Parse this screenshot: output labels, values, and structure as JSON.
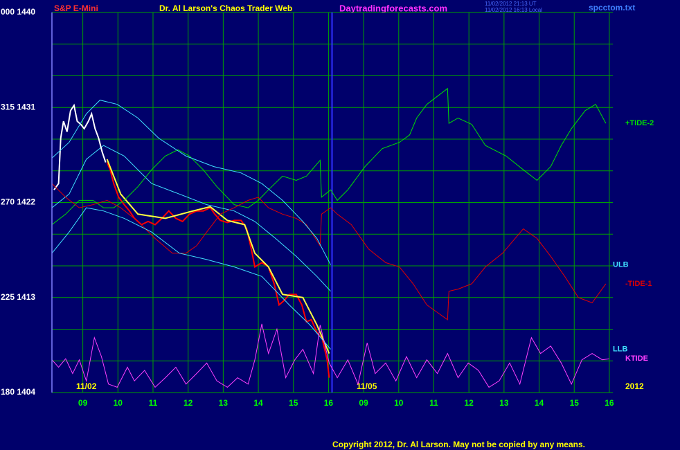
{
  "chart_data": {
    "type": "line",
    "symbol": "S&P E-Mini",
    "title": "Dr. Al Larson's Chaos Trader Web",
    "subtitle": "Daytradingforecasts.com",
    "timestamps": [
      "11/02/2012 21:13 UT",
      "11/02/2012 16:13 Local"
    ],
    "file": "spcctom.txt",
    "copyright": "Copyright 2012, Dr. Al Larson. May not be copied by any means.",
    "date_labels": [
      "11/02",
      "11/05",
      "2012"
    ],
    "xlim": [
      0.12,
      16.1
    ],
    "ylim": [
      1404,
      1440
    ],
    "xticks": [
      {
        "value": 1,
        "label": "09"
      },
      {
        "value": 2,
        "label": "10"
      },
      {
        "value": 3,
        "label": "11"
      },
      {
        "value": 4,
        "label": "12"
      },
      {
        "value": 5,
        "label": "13"
      },
      {
        "value": 6,
        "label": "14"
      },
      {
        "value": 7,
        "label": "15"
      },
      {
        "value": 8,
        "label": "16"
      },
      {
        "value": 9,
        "label": "09"
      },
      {
        "value": 10,
        "label": "10"
      },
      {
        "value": 11,
        "label": "11"
      },
      {
        "value": 12,
        "label": "12"
      },
      {
        "value": 13,
        "label": "13"
      },
      {
        "value": 14,
        "label": "14"
      },
      {
        "value": 15,
        "label": "15"
      },
      {
        "value": 16,
        "label": "16"
      }
    ],
    "yticks": [
      {
        "value": 1440,
        "label": "000 1440"
      },
      {
        "value": 1431,
        "label": "315 1431"
      },
      {
        "value": 1422,
        "label": "270 1422"
      },
      {
        "value": 1413,
        "label": "225 1413"
      },
      {
        "value": 1404,
        "label": "180 1404"
      }
    ],
    "y_gridlines": [
      1440,
      1437,
      1434,
      1431,
      1428,
      1425,
      1422,
      1419,
      1416,
      1413,
      1410,
      1407,
      1404
    ],
    "session_break": 8.1,
    "grid": true,
    "series": [
      {
        "name": "+TIDE-2",
        "color": "#00e000",
        "x": [
          0.12,
          0.51,
          0.9,
          1.29,
          1.59,
          1.88,
          2.18,
          2.57,
          2.96,
          3.35,
          3.71,
          4.04,
          4.43,
          4.82,
          5.31,
          5.71,
          6.0,
          6.29,
          6.69,
          7.08,
          7.37,
          7.76,
          7.8,
          8.06,
          8.25,
          8.55,
          9.04,
          9.53,
          10.02,
          10.31,
          10.51,
          10.8,
          11.39,
          11.43,
          11.69,
          12.08,
          12.47,
          13.06,
          13.55,
          13.94,
          14.33,
          14.63,
          14.92,
          15.31,
          15.61,
          15.9
        ],
        "values": [
          1419.9,
          1420.9,
          1422.2,
          1422.2,
          1421.5,
          1421.5,
          1422.2,
          1423.5,
          1425.1,
          1426.4,
          1427.0,
          1426.4,
          1425.1,
          1423.5,
          1421.8,
          1421.5,
          1422.2,
          1423.2,
          1424.5,
          1424.1,
          1424.5,
          1426.0,
          1422.5,
          1423.2,
          1422.2,
          1423.2,
          1425.4,
          1427.1,
          1427.7,
          1428.4,
          1430.0,
          1431.3,
          1432.8,
          1429.5,
          1430.0,
          1429.4,
          1427.4,
          1426.4,
          1425.1,
          1424.1,
          1425.4,
          1427.4,
          1429.0,
          1430.7,
          1431.3,
          1429.5
        ]
      },
      {
        "name": "-TIDE-1",
        "color": "#e00000",
        "x": [
          0.12,
          0.51,
          0.9,
          1.29,
          1.69,
          2.08,
          2.57,
          3.06,
          3.55,
          3.94,
          4.24,
          4.53,
          4.92,
          5.31,
          5.71,
          6.0,
          6.29,
          6.69,
          7.08,
          7.37,
          7.76,
          7.8,
          8.06,
          8.25,
          8.65,
          9.14,
          9.63,
          10.02,
          10.41,
          10.8,
          11.39,
          11.43,
          11.69,
          12.08,
          12.47,
          12.96,
          13.55,
          13.94,
          14.33,
          14.73,
          15.12,
          15.51,
          15.9
        ],
        "values": [
          1423.8,
          1422.5,
          1421.5,
          1421.8,
          1422.2,
          1421.5,
          1420.2,
          1418.6,
          1417.2,
          1417.2,
          1417.9,
          1419.2,
          1420.9,
          1421.5,
          1422.2,
          1422.5,
          1421.5,
          1420.9,
          1420.5,
          1419.9,
          1417.9,
          1420.9,
          1421.5,
          1420.9,
          1419.9,
          1417.6,
          1416.3,
          1415.9,
          1414.3,
          1412.3,
          1410.9,
          1413.6,
          1413.8,
          1414.3,
          1415.9,
          1417.2,
          1419.5,
          1418.6,
          1416.9,
          1415.0,
          1413.0,
          1412.5,
          1414.3
        ]
      },
      {
        "name": "ULB",
        "color": "#40e0ff",
        "x": [
          0.12,
          0.61,
          1.1,
          1.49,
          1.98,
          2.57,
          3.16,
          3.94,
          4.73,
          5.51,
          6.1,
          6.69,
          7.27,
          7.67,
          8.06
        ],
        "values": [
          1426.2,
          1427.7,
          1430.4,
          1431.7,
          1431.3,
          1430.0,
          1428.1,
          1426.4,
          1425.4,
          1424.8,
          1423.8,
          1422.2,
          1420.2,
          1418.6,
          1416.1
        ]
      },
      {
        "name": "LLB",
        "color": "#40e0ff",
        "x": [
          0.12,
          0.61,
          1.1,
          1.59,
          2.18,
          2.96,
          3.75,
          4.53,
          5.31,
          6.1,
          6.88,
          7.47,
          8.06
        ],
        "values": [
          1417.2,
          1419.2,
          1421.5,
          1421.2,
          1420.5,
          1419.2,
          1417.2,
          1416.6,
          1415.9,
          1415.0,
          1412.3,
          1410.4,
          1408.1
        ]
      },
      {
        "name": "KTIDE",
        "color": "#ff40ff",
        "x": [
          0.12,
          0.31,
          0.51,
          0.71,
          0.9,
          1.1,
          1.33,
          1.53,
          1.73,
          1.98,
          2.27,
          2.47,
          2.76,
          3.06,
          3.35,
          3.65,
          3.94,
          4.24,
          4.53,
          4.82,
          5.12,
          5.41,
          5.71,
          5.9,
          6.1,
          6.29,
          6.53,
          6.78,
          7.04,
          7.27,
          7.57,
          7.76,
          8.02,
          8.25,
          8.55,
          8.84,
          9.1,
          9.33,
          9.63,
          9.92,
          10.22,
          10.51,
          10.8,
          11.1,
          11.39,
          11.69,
          11.98,
          12.27,
          12.57,
          12.86,
          13.16,
          13.45,
          13.78,
          14.04,
          14.33,
          14.63,
          14.92,
          15.22,
          15.51,
          15.8,
          16.0
        ],
        "values": [
          1407.1,
          1406.4,
          1407.2,
          1405.8,
          1407.1,
          1405.1,
          1409.2,
          1407.4,
          1404.8,
          1404.5,
          1406.4,
          1405.1,
          1406.1,
          1404.5,
          1405.4,
          1406.4,
          1404.8,
          1405.8,
          1406.8,
          1405.1,
          1404.5,
          1405.4,
          1404.8,
          1407.1,
          1410.5,
          1407.7,
          1410.0,
          1405.4,
          1407.1,
          1408.1,
          1405.8,
          1410.4,
          1406.8,
          1405.4,
          1407.1,
          1404.8,
          1408.7,
          1405.8,
          1406.8,
          1405.1,
          1407.4,
          1405.4,
          1407.1,
          1405.8,
          1407.7,
          1405.4,
          1406.8,
          1406.1,
          1404.5,
          1405.1,
          1406.8,
          1404.8,
          1409.2,
          1407.7,
          1408.4,
          1406.8,
          1404.8,
          1407.1,
          1407.7,
          1407.1,
          1407.2
        ]
      }
    ],
    "lines": [
      {
        "color": "#40e0ff",
        "x": [
          0.12,
          0.61,
          1.1,
          1.59,
          2.18,
          2.96,
          3.75,
          4.53,
          5.31,
          5.9,
          6.49,
          7.08,
          7.67,
          8.06
        ],
        "values": [
          1421.5,
          1422.8,
          1426.1,
          1427.4,
          1426.4,
          1423.8,
          1422.8,
          1421.8,
          1421.2,
          1420.2,
          1418.6,
          1416.9,
          1415.0,
          1413.6
        ]
      },
      {
        "color": "#ffffff",
        "x": [
          0.18,
          0.31,
          0.37,
          0.45,
          0.55,
          0.65,
          0.75,
          0.84,
          0.94,
          1.04,
          1.16,
          1.25,
          1.35,
          1.45,
          1.55,
          1.65
        ],
        "values": [
          1423.2,
          1423.8,
          1428.1,
          1429.7,
          1428.7,
          1430.7,
          1431.2,
          1429.7,
          1429.4,
          1429.0,
          1429.7,
          1430.4,
          1429.0,
          1428.1,
          1426.8,
          1425.8
        ]
      },
      {
        "color": "#ff0000",
        "x": [
          1.69,
          1.78,
          1.88,
          2.02,
          2.18,
          2.33,
          2.47,
          2.67,
          2.86,
          3.06,
          3.25,
          3.45,
          3.65,
          3.84,
          4.04,
          4.24,
          4.43,
          4.63,
          4.76,
          4.92,
          5.12,
          5.31,
          5.51,
          5.67,
          5.8,
          5.9,
          6.1,
          6.29,
          6.45,
          6.59,
          6.73,
          6.88,
          7.08,
          7.24,
          7.37,
          7.51,
          7.67,
          7.82,
          7.96,
          8.02
        ],
        "values": [
          1425.8,
          1425.1,
          1423.8,
          1422.5,
          1421.8,
          1421.2,
          1420.5,
          1419.9,
          1420.2,
          1419.9,
          1420.5,
          1421.2,
          1420.5,
          1420.2,
          1420.9,
          1421.2,
          1421.2,
          1421.5,
          1420.9,
          1420.3,
          1420.1,
          1420.3,
          1420.3,
          1419.5,
          1417.6,
          1415.9,
          1416.3,
          1415.9,
          1414.3,
          1412.3,
          1412.7,
          1413.3,
          1413.3,
          1412.3,
          1410.7,
          1410.9,
          1409.7,
          1409.1,
          1407.1,
          1405.4
        ]
      },
      {
        "color": "#ffff40",
        "x": [
          1.69,
          2.08,
          2.57,
          3.35,
          4.14,
          4.63,
          5.12,
          5.61,
          5.9,
          6.29,
          6.69,
          7.27,
          7.67,
          8.02
        ],
        "values": [
          1426.1,
          1422.8,
          1420.9,
          1420.5,
          1421.2,
          1421.6,
          1420.3,
          1419.9,
          1417.2,
          1415.9,
          1413.3,
          1413.0,
          1410.4,
          1407.7
        ]
      }
    ]
  }
}
